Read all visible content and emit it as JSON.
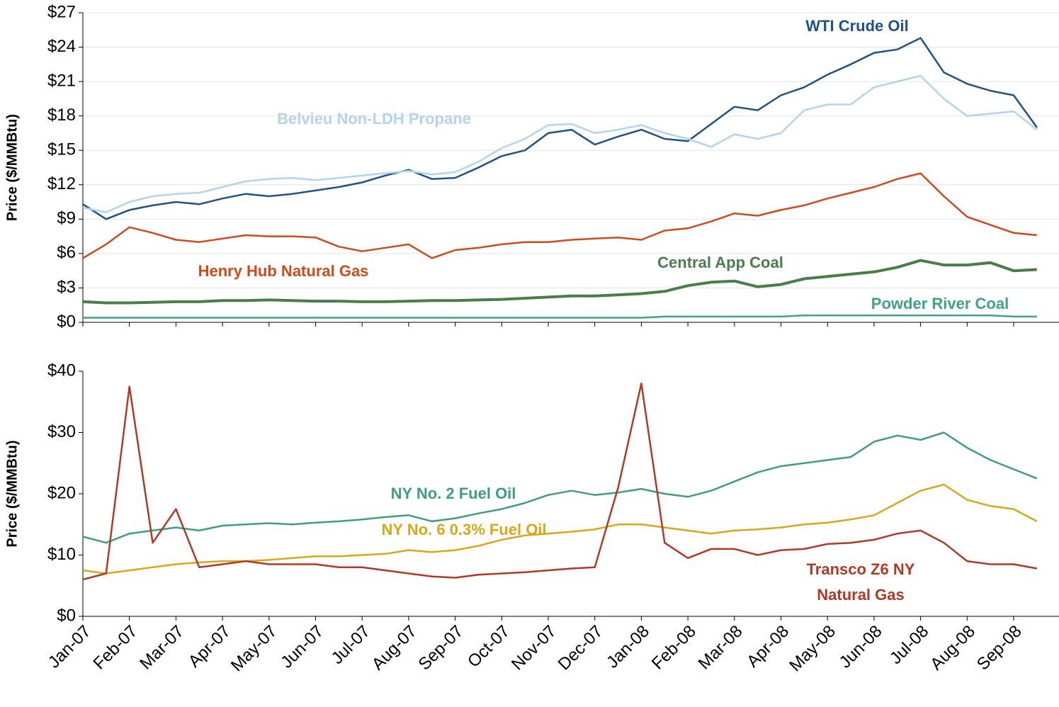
{
  "chart_data": [
    {
      "type": "line",
      "y_label": "Price ($/MMBtu)",
      "grid": true,
      "ylim": [
        0,
        27
      ],
      "yticks": [
        {
          "value": 0,
          "label": "$0"
        },
        {
          "value": 3,
          "label": "$3"
        },
        {
          "value": 6,
          "label": "$6"
        },
        {
          "value": 9,
          "label": "$9"
        },
        {
          "value": 12,
          "label": "$12"
        },
        {
          "value": 15,
          "label": "$15"
        },
        {
          "value": 18,
          "label": "$18"
        },
        {
          "value": 21,
          "label": "$21"
        },
        {
          "value": 24,
          "label": "$24"
        },
        {
          "value": 27,
          "label": "$27"
        }
      ],
      "series": [
        {
          "name": "WTI Crude Oil",
          "color": "#1f5286",
          "values": [
            10.3,
            9.0,
            9.8,
            10.2,
            10.5,
            10.3,
            10.8,
            11.2,
            11.0,
            11.2,
            11.5,
            11.8,
            12.2,
            12.8,
            13.3,
            12.5,
            12.6,
            13.5,
            14.5,
            15.0,
            16.5,
            16.8,
            15.5,
            16.2,
            16.8,
            16.0,
            15.8,
            17.3,
            18.8,
            18.5,
            19.8,
            20.5,
            21.6,
            22.5,
            23.5,
            23.8,
            24.8,
            21.8,
            20.8,
            20.2,
            19.8,
            17.0
          ]
        },
        {
          "name": "Belvieu Non-LDH Propane",
          "color": "#b4d3ec",
          "values": [
            10.0,
            9.6,
            10.5,
            11.0,
            11.2,
            11.3,
            11.8,
            12.3,
            12.5,
            12.6,
            12.4,
            12.6,
            12.8,
            13.0,
            13.2,
            12.9,
            13.1,
            14.0,
            15.2,
            16.0,
            17.2,
            17.3,
            16.5,
            16.8,
            17.2,
            16.5,
            16.0,
            15.3,
            16.4,
            16.0,
            16.5,
            18.5,
            19.0,
            19.0,
            20.5,
            21.0,
            21.5,
            19.5,
            18.0,
            18.2,
            18.4,
            16.8
          ]
        },
        {
          "name": "Henry Hub Natural Gas",
          "color": "#d04a1c",
          "values": [
            5.6,
            6.8,
            8.3,
            7.8,
            7.2,
            7.0,
            7.3,
            7.6,
            7.5,
            7.5,
            7.4,
            6.6,
            6.2,
            6.5,
            6.8,
            5.6,
            6.3,
            6.5,
            6.8,
            7.0,
            7.0,
            7.2,
            7.3,
            7.4,
            7.2,
            8.0,
            8.2,
            8.8,
            9.5,
            9.3,
            9.8,
            10.2,
            10.8,
            11.3,
            11.8,
            12.5,
            13.0,
            11.0,
            9.2,
            8.5,
            7.8,
            7.6
          ]
        },
        {
          "name": "Central App Coal",
          "color": "#4a7d48",
          "values": [
            1.8,
            1.7,
            1.7,
            1.75,
            1.8,
            1.8,
            1.9,
            1.9,
            1.95,
            1.9,
            1.85,
            1.85,
            1.8,
            1.8,
            1.85,
            1.9,
            1.9,
            1.95,
            2.0,
            2.1,
            2.2,
            2.3,
            2.3,
            2.4,
            2.5,
            2.7,
            3.2,
            3.5,
            3.6,
            3.1,
            3.3,
            3.8,
            4.0,
            4.2,
            4.4,
            4.8,
            5.4,
            5.0,
            5.0,
            5.2,
            4.5,
            4.6
          ]
        },
        {
          "name": "Powder River Coal",
          "color": "#3fa38c",
          "values": [
            0.4,
            0.4,
            0.4,
            0.4,
            0.4,
            0.4,
            0.4,
            0.4,
            0.4,
            0.4,
            0.4,
            0.4,
            0.4,
            0.4,
            0.4,
            0.4,
            0.4,
            0.4,
            0.4,
            0.4,
            0.4,
            0.4,
            0.4,
            0.4,
            0.4,
            0.5,
            0.5,
            0.5,
            0.5,
            0.5,
            0.5,
            0.6,
            0.6,
            0.6,
            0.6,
            0.6,
            0.6,
            0.6,
            0.6,
            0.6,
            0.5,
            0.5
          ]
        }
      ]
    },
    {
      "type": "line",
      "y_label": "Price ($/MMBtu)",
      "grid": false,
      "categories": [
        "Jan-07",
        null,
        "Feb-07",
        null,
        "Mar-07",
        null,
        "Apr-07",
        null,
        "May-07",
        null,
        "Jun-07",
        null,
        "Jul-07",
        null,
        "Aug-07",
        null,
        "Sep-07",
        null,
        "Oct-07",
        null,
        "Nov-07",
        null,
        "Dec-07",
        null,
        "Jan-08",
        null,
        "Feb-08",
        null,
        "Mar-08",
        null,
        "Apr-08",
        null,
        "May-08",
        null,
        "Jun-08",
        null,
        "Jul-08",
        null,
        "Aug-08",
        null,
        "Sep-08",
        null
      ],
      "ylim": [
        0,
        40
      ],
      "yticks": [
        {
          "value": 0,
          "label": "$0"
        },
        {
          "value": 10,
          "label": "$10"
        },
        {
          "value": 20,
          "label": "$20"
        },
        {
          "value": 30,
          "label": "$30"
        },
        {
          "value": 40,
          "label": "$40"
        }
      ],
      "series": [
        {
          "name": "NY No. 2 Fuel Oil",
          "color": "#3f9e80",
          "values": [
            13,
            12,
            13.5,
            14,
            14.5,
            14,
            14.8,
            15,
            15.2,
            15,
            15.3,
            15.5,
            15.8,
            16.2,
            16.5,
            15.5,
            16,
            16.8,
            17.5,
            18.5,
            19.8,
            20.5,
            19.8,
            20.2,
            20.8,
            20,
            19.5,
            20.5,
            22,
            23.5,
            24.5,
            25,
            25.5,
            26,
            28.5,
            29.5,
            28.8,
            30,
            27.5,
            25.5,
            24,
            22.5
          ]
        },
        {
          "name": "NY No. 6 0.3% Fuel Oil",
          "color": "#d9a81a",
          "values": [
            7.5,
            7,
            7.5,
            8,
            8.5,
            8.8,
            9,
            9,
            9.2,
            9.5,
            9.8,
            9.8,
            10,
            10.2,
            10.8,
            10.5,
            10.8,
            11.5,
            12.5,
            13.2,
            13.5,
            13.8,
            14.2,
            15,
            15,
            14.5,
            14,
            13.5,
            14,
            14.2,
            14.5,
            15,
            15.3,
            15.8,
            16.5,
            18.5,
            20.5,
            21.5,
            19,
            18,
            17.5,
            15.5
          ]
        },
        {
          "name": "Transco Z6 NY Natural Gas",
          "color": "#b03a26",
          "values": [
            6,
            7,
            37.5,
            12,
            17.5,
            8,
            8.5,
            9,
            8.5,
            8.5,
            8.5,
            8,
            8,
            7.5,
            7,
            6.5,
            6.3,
            6.8,
            7,
            7.2,
            7.5,
            7.8,
            8,
            21,
            38,
            12,
            9.5,
            11,
            11,
            10,
            10.8,
            11,
            11.8,
            12,
            12.5,
            13.5,
            14,
            12,
            9,
            8.5,
            8.5,
            7.8
          ]
        }
      ]
    }
  ]
}
